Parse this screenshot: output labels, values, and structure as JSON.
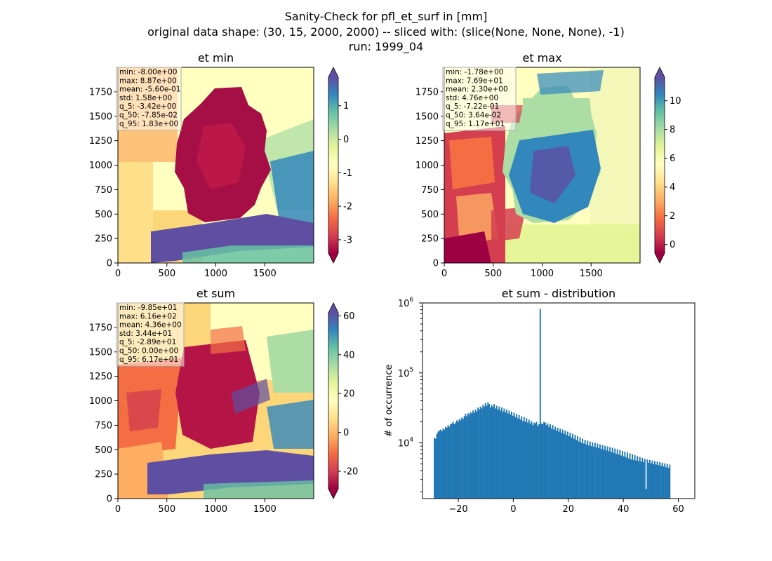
{
  "figure": {
    "title_lines": [
      "Sanity-Check for pfl_et_surf in [mm]",
      "original data shape: (30, 15, 2000, 2000) -- sliced with: (slice(None, None, None), -1)",
      "run: 1999_04"
    ]
  },
  "chart_data": [
    {
      "type": "heatmap",
      "title": "et min",
      "colormap": "Spectral",
      "xlim": [
        0,
        2000
      ],
      "ylim": [
        0,
        2000
      ],
      "xticks": [
        0,
        500,
        1000,
        1500
      ],
      "yticks": [
        0,
        250,
        500,
        750,
        1000,
        1250,
        1500,
        1750
      ],
      "colorbar": {
        "range": [
          -3.42,
          1.83
        ],
        "ticks": [
          1,
          0,
          -1,
          -2,
          -3
        ],
        "extend": "both"
      },
      "stats": [
        "min: -8.00e+00",
        "max: 8.87e+00",
        "mean: -5.60e-01",
        "std: 1.58e+00",
        "q_5: -3.42e+00",
        "q_50: -7.85e-02",
        "q_95: 1.83e+00"
      ]
    },
    {
      "type": "heatmap",
      "title": "et max",
      "colormap": "Spectral",
      "xlim": [
        0,
        2000
      ],
      "ylim": [
        0,
        2000
      ],
      "xticks": [
        0,
        500,
        1000,
        1500
      ],
      "yticks": [
        0,
        250,
        500,
        750,
        1000,
        1250,
        1500,
        1750
      ],
      "colorbar": {
        "range": [
          -0.72,
          11.7
        ],
        "ticks": [
          10,
          8,
          6,
          4,
          2,
          0
        ],
        "extend": "both"
      },
      "stats": [
        "min: -1.78e+00",
        "max: 7.69e+01",
        "mean: 2.30e+00",
        "std: 4.76e+00",
        "q_5: -7.22e-01",
        "q_50: 3.64e-02",
        "q_95: 1.17e+01"
      ]
    },
    {
      "type": "heatmap",
      "title": "et sum",
      "colormap": "Spectral",
      "xlim": [
        0,
        2000
      ],
      "ylim": [
        0,
        2000
      ],
      "xticks": [
        0,
        500,
        1000,
        1500
      ],
      "yticks": [
        0,
        250,
        500,
        750,
        1000,
        1250,
        1500,
        1750
      ],
      "colorbar": {
        "range": [
          -28.9,
          61.7
        ],
        "ticks": [
          60,
          40,
          20,
          0,
          -20
        ],
        "extend": "both"
      },
      "stats": [
        "min: -9.85e+01",
        "max: 6.16e+02",
        "mean: 4.36e+00",
        "std: 3.44e+01",
        "q_5: -2.89e+01",
        "q_50: 0.00e+00",
        "q_95: 6.17e+01"
      ]
    },
    {
      "type": "bar",
      "title": "et sum - distribution",
      "ylabel": "# of occurrence",
      "yscale": "log",
      "xlim": [
        -33,
        66
      ],
      "ylim": [
        1600,
        1000000
      ],
      "xticks": [
        -20,
        0,
        20,
        40,
        60
      ],
      "yticks": [
        10000,
        100000,
        1000000
      ],
      "ytick_labels": [
        {
          "base": "10",
          "exp": "4"
        },
        {
          "base": "10",
          "exp": "5"
        },
        {
          "base": "10",
          "exp": "6"
        }
      ],
      "color": "#1f77b4",
      "bin_start": -28.9,
      "bin_width": 0.4526,
      "counts": [
        11800,
        11500,
        13500,
        14500,
        15000,
        15500,
        14800,
        16000,
        15500,
        17000,
        16500,
        18000,
        17000,
        18500,
        19000,
        20000,
        18500,
        19500,
        21000,
        20000,
        22000,
        21000,
        23000,
        22000,
        24000,
        26000,
        24000,
        26500,
        25500,
        27500,
        26500,
        29000,
        27000,
        30000,
        28000,
        32000,
        30000,
        33000,
        31000,
        35000,
        33000,
        37000,
        34000,
        38000,
        36000,
        32000,
        35000,
        33000,
        36000,
        31000,
        34000,
        30000,
        33000,
        29000,
        32000,
        28000,
        31000,
        27500,
        30000,
        26500,
        29000,
        25500,
        28000,
        24500,
        27000,
        23500,
        26000,
        22500,
        25000,
        21500,
        24000,
        20500,
        23500,
        20000,
        22500,
        19500,
        21500,
        19000,
        20500,
        18000,
        19500,
        19000,
        20000,
        17500,
        18500,
        820000,
        19000,
        18500,
        20000,
        19500,
        18000,
        19000,
        17000,
        18500,
        16000,
        18000,
        15500,
        17000,
        15000,
        16500,
        14500,
        16000,
        14000,
        15500,
        13500,
        15000,
        13000,
        14500,
        12500,
        14000,
        12000,
        13500,
        11500,
        13000,
        11000,
        12500,
        10500,
        12000,
        10000,
        11500,
        9800,
        11000,
        9500,
        10800,
        9200,
        10500,
        9000,
        10200,
        8800,
        10000,
        8600,
        9800,
        8400,
        9500,
        8200,
        9300,
        8000,
        9100,
        7800,
        8900,
        7600,
        8700,
        7400,
        8500,
        7200,
        8300,
        7000,
        8100,
        6800,
        7900,
        6600,
        7700,
        6400,
        7500,
        6200,
        7300,
        6000,
        7100,
        5800,
        6900,
        5700,
        6700,
        5600,
        6500,
        5500,
        6300,
        5400,
        6100,
        5300,
        5900,
        2200,
        5800,
        5200,
        5700,
        5100,
        5600,
        5000,
        5500,
        4900,
        5400,
        4800,
        5300,
        4700,
        5200,
        4600,
        5100,
        4500,
        5000,
        4400,
        4900
      ]
    }
  ]
}
